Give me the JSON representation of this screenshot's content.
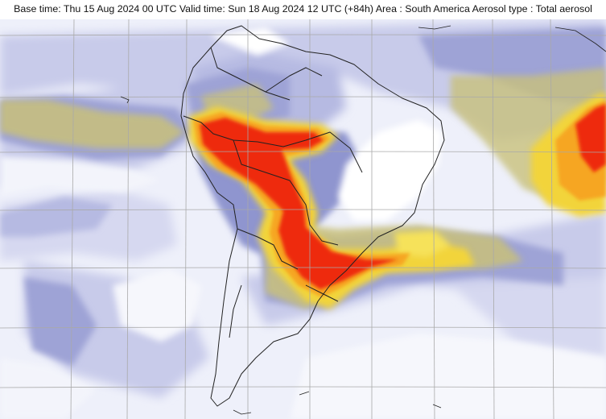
{
  "header": {
    "title": "Base time: Thu 15 Aug 2024 00 UTC Valid time: Sun 18 Aug 2024 12 UTC (+84h) Area : South America Aerosol type : Total aerosol"
  },
  "map": {
    "area": "South America",
    "field": "Total aerosol",
    "colors": {
      "background": "#ffffff",
      "low": "#c8cbea",
      "medium_low": "#9ea3d6",
      "medium": "#7f86c8",
      "elevated": "#c8c07a",
      "high": "#f2d43a",
      "very_high": "#f6a623",
      "extreme": "#ee2a0f",
      "coastline": "#222222",
      "gridline": "#a9a9a9"
    }
  }
}
